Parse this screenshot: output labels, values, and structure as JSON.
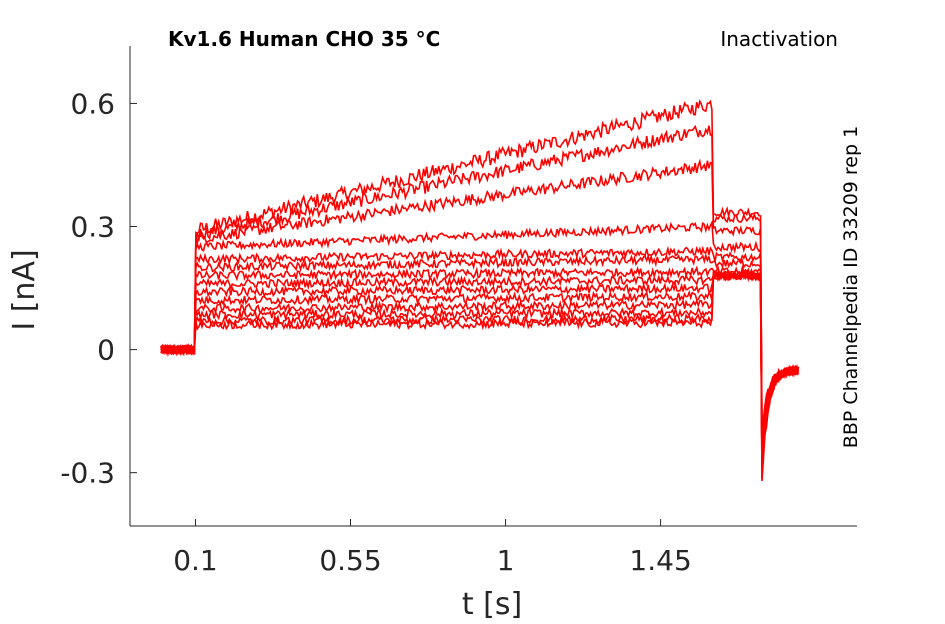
{
  "header": {
    "title": "Kv1.6  Human  CHO  35 °C",
    "protocol": "Inactivation",
    "source": "BBP Channelpedia ID 33209 rep 1"
  },
  "colors": {
    "trace": "#ff0000",
    "axis": "#262626"
  },
  "chart_data": {
    "type": "line",
    "xlabel": "t [s]",
    "ylabel": "I [nA]",
    "xlim": [
      -0.09,
      2.02
    ],
    "ylim": [
      -0.43,
      0.74
    ],
    "xticks": [
      0.1,
      0.55,
      1,
      1.45
    ],
    "xtick_labels": [
      "0.1",
      "0.55",
      "1",
      "1.45"
    ],
    "yticks": [
      0.6,
      0.3,
      0,
      -0.3
    ],
    "ytick_labels": [
      "0.6",
      "0.3",
      "0",
      "-0.3"
    ],
    "grid": false,
    "series": [
      {
        "baseline": 0.0,
        "step": [
          0.29,
          0.6
        ],
        "tail": 0.335,
        "noise": 0.018
      },
      {
        "baseline": 0.0,
        "step": [
          0.28,
          0.54
        ],
        "tail": 0.32,
        "noise": 0.016
      },
      {
        "baseline": 0.0,
        "step": [
          0.27,
          0.45
        ],
        "tail": 0.29,
        "noise": 0.014
      },
      {
        "baseline": 0.0,
        "step": [
          0.25,
          0.3
        ],
        "tail": 0.25,
        "noise": 0.01
      },
      {
        "baseline": 0.0,
        "step": [
          0.22,
          0.24
        ],
        "tail": 0.225,
        "noise": 0.01
      },
      {
        "baseline": 0.0,
        "step": [
          0.2,
          0.22
        ],
        "tail": 0.21,
        "noise": 0.01
      },
      {
        "baseline": 0.0,
        "step": [
          0.18,
          0.19
        ],
        "tail": 0.19,
        "noise": 0.01
      },
      {
        "baseline": 0.0,
        "step": [
          0.16,
          0.17
        ],
        "tail": 0.18,
        "noise": 0.01
      },
      {
        "baseline": 0.0,
        "step": [
          0.14,
          0.15
        ],
        "tail": 0.18,
        "noise": 0.01
      },
      {
        "baseline": 0.0,
        "step": [
          0.12,
          0.13
        ],
        "tail": 0.18,
        "noise": 0.01
      },
      {
        "baseline": 0.0,
        "step": [
          0.1,
          0.11
        ],
        "tail": 0.18,
        "noise": 0.01
      },
      {
        "baseline": 0.0,
        "step": [
          0.085,
          0.09
        ],
        "tail": 0.18,
        "noise": 0.01
      },
      {
        "baseline": 0.0,
        "step": [
          0.07,
          0.075
        ],
        "tail": 0.18,
        "noise": 0.01
      },
      {
        "baseline": 0.0,
        "step": [
          0.06,
          0.065
        ],
        "tail": 0.18,
        "noise": 0.01
      }
    ],
    "time_points": {
      "start": 0.0,
      "step_on": 0.1,
      "step_off": 1.6,
      "tail_end": 1.74,
      "end": 1.85
    }
  }
}
